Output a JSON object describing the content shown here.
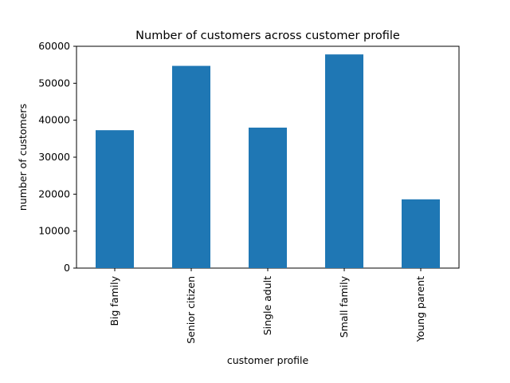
{
  "chart_data": {
    "type": "bar",
    "title": "Number of customers across customer profile",
    "xlabel": "customer profile",
    "ylabel": "number of customers",
    "categories": [
      "Big family",
      "Senior citizen",
      "Single adult",
      "Small family",
      "Young parent"
    ],
    "values": [
      37300,
      54700,
      38000,
      57800,
      18600
    ],
    "ylim": [
      0,
      60000
    ],
    "yticks": [
      0,
      10000,
      20000,
      30000,
      40000,
      50000,
      60000
    ],
    "ytick_labels": [
      "0",
      "10000",
      "20000",
      "30000",
      "40000",
      "50000",
      "60000"
    ],
    "bar_color": "#1f77b4",
    "grid": false,
    "legend": "none"
  }
}
